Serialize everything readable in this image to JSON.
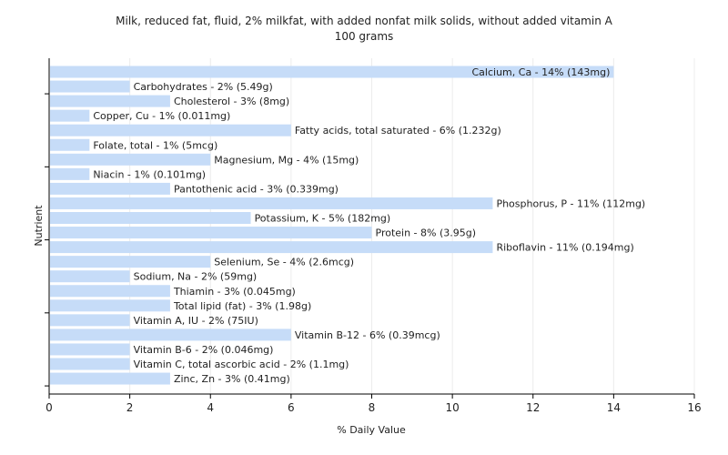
{
  "chart_data": {
    "type": "bar",
    "orientation": "horizontal",
    "title": "Milk, reduced fat, fluid, 2% milkfat, with added nonfat milk solids, without added vitamin A",
    "subtitle": "100 grams",
    "xlabel": "% Daily Value",
    "ylabel": "Nutrient",
    "xlim": [
      0,
      16
    ],
    "xticks": [
      0,
      2,
      4,
      6,
      8,
      10,
      12,
      14,
      16
    ],
    "grid": true,
    "bar_color": "#c6dcf8",
    "categories": [
      "Calcium, Ca",
      "Carbohydrates",
      "Cholesterol",
      "Copper, Cu",
      "Fatty acids, total saturated",
      "Folate, total",
      "Magnesium, Mg",
      "Niacin",
      "Pantothenic acid",
      "Phosphorus, P",
      "Potassium, K",
      "Protein",
      "Riboflavin",
      "Selenium, Se",
      "Sodium, Na",
      "Thiamin",
      "Total lipid (fat)",
      "Vitamin A, IU",
      "Vitamin B-12",
      "Vitamin B-6",
      "Vitamin C, total ascorbic acid",
      "Zinc, Zn"
    ],
    "values": [
      14,
      2,
      3,
      1,
      6,
      1,
      4,
      1,
      3,
      11,
      5,
      8,
      11,
      4,
      2,
      3,
      3,
      2,
      6,
      2,
      2,
      3
    ],
    "labels": [
      "Calcium, Ca - 14% (143mg)",
      "Carbohydrates - 2% (5.49g)",
      "Cholesterol - 3% (8mg)",
      "Copper, Cu - 1% (0.011mg)",
      "Fatty acids, total saturated - 6% (1.232g)",
      "Folate, total - 1% (5mcg)",
      "Magnesium, Mg - 4% (15mg)",
      "Niacin - 1% (0.101mg)",
      "Pantothenic acid - 3% (0.339mg)",
      "Phosphorus, P - 11% (112mg)",
      "Potassium, K - 5% (182mg)",
      "Protein - 8% (3.95g)",
      "Riboflavin - 11% (0.194mg)",
      "Selenium, Se - 4% (2.6mcg)",
      "Sodium, Na - 2% (59mg)",
      "Thiamin - 3% (0.045mg)",
      "Total lipid (fat) - 3% (1.98g)",
      "Vitamin A, IU - 2% (75IU)",
      "Vitamin B-12 - 6% (0.39mcg)",
      "Vitamin B-6 - 2% (0.046mg)",
      "Vitamin C, total ascorbic acid - 2% (1.1mg)",
      "Zinc, Zn - 3% (0.41mg)"
    ]
  }
}
